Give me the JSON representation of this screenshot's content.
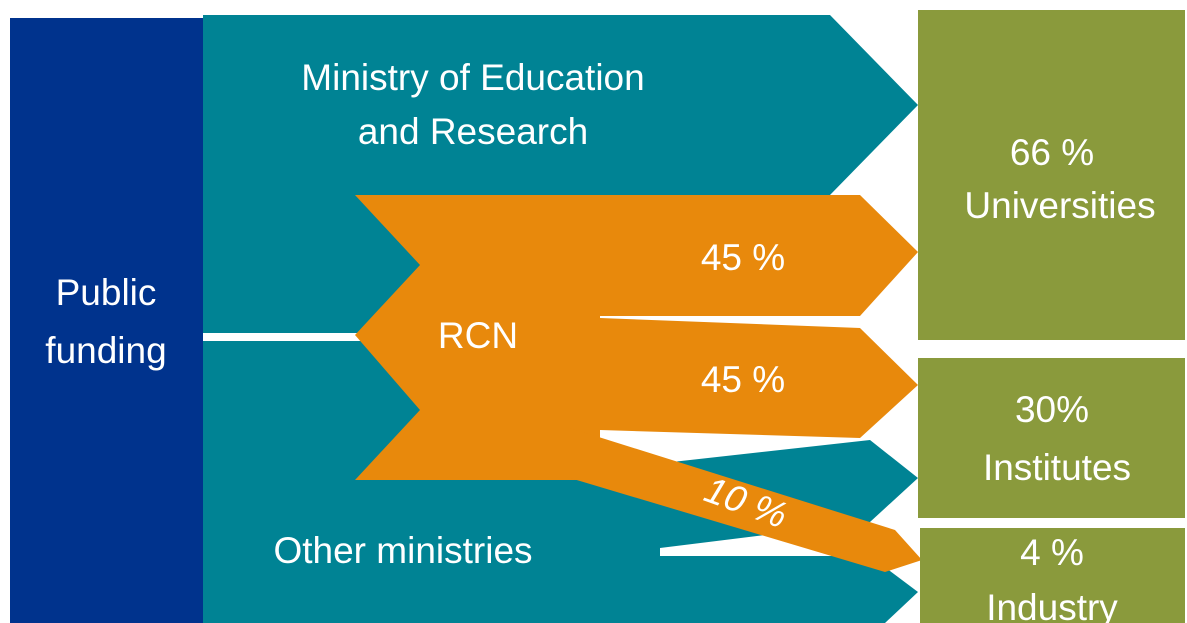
{
  "source": {
    "label": [
      "Public",
      "funding"
    ]
  },
  "ministries": [
    {
      "label": [
        "Ministry of Education",
        "and Research"
      ]
    },
    {
      "label": [
        "Other ministries"
      ]
    }
  ],
  "rcn": {
    "label": "RCN",
    "flows": [
      "45 %",
      "45 %",
      "10 %"
    ]
  },
  "recipients": [
    {
      "share": "66 %",
      "name": "Universities"
    },
    {
      "share": "30%",
      "name": "Institutes"
    },
    {
      "share": "4 %",
      "name": "Industry"
    }
  ]
}
